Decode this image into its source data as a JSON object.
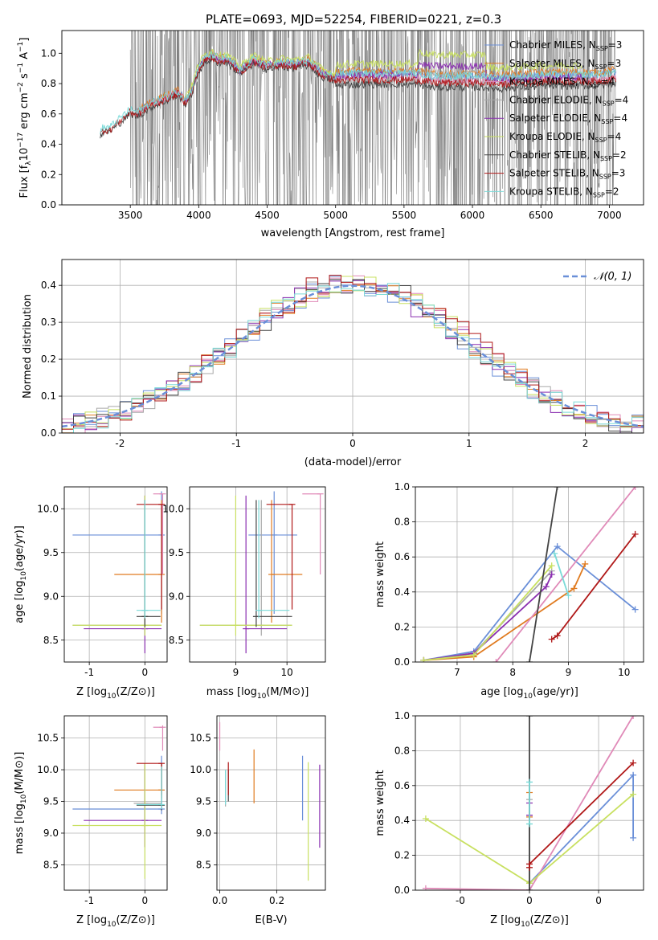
{
  "title": "PLATE=0693, MJD=52254, FIBERID=0221, z=0.3",
  "colors": {
    "chabrier_miles": "#6a8fd8",
    "salpeter_miles": "#e07b20",
    "kroupa_miles": "#e08ab8",
    "chabrier_elodie": "#a8a8a8",
    "salpeter_elodie": "#8a2fb0",
    "kroupa_elodie": "#c8e060",
    "chabrier_stelib": "#444444",
    "salpeter_stelib": "#b01818",
    "kroupa_stelib": "#7adad8",
    "data": "#808080",
    "normal": "#6a8fd8",
    "grid": "#b0b0b0"
  },
  "chart_data": [
    {
      "id": "spectrum",
      "type": "line",
      "xlabel": "wavelength [Angstrom, rest frame]",
      "ylabel": "Flux [f",
      "xlim": [
        3000,
        7250
      ],
      "ylim": [
        0,
        1.15
      ],
      "xticks": [
        3500,
        4000,
        4500,
        5000,
        5500,
        6000,
        6500,
        7000
      ],
      "yticks": [
        0.0,
        0.2,
        0.4,
        0.6,
        0.8,
        1.0
      ],
      "grid": false,
      "legend_position": "upper-right",
      "legend": [
        {
          "lib": "Chabrier MILES",
          "n": "3"
        },
        {
          "lib": "Salpeter MILES",
          "n": "3"
        },
        {
          "lib": "Kroupa MILES",
          "n": "4"
        },
        {
          "lib": "Chabrier ELODIE",
          "n": "4"
        },
        {
          "lib": "Salpeter ELODIE",
          "n": "4"
        },
        {
          "lib": "Kroupa ELODIE",
          "n": "4"
        },
        {
          "lib": "Chabrier STELIB",
          "n": "2"
        },
        {
          "lib": "Salpeter STELIB",
          "n": "3"
        },
        {
          "lib": "Kroupa STELIB",
          "n": "2"
        }
      ],
      "model_continuum": {
        "x": [
          3280,
          3300,
          3350,
          3400,
          3450,
          3500,
          3550,
          3600,
          3650,
          3700,
          3750,
          3800,
          3850,
          3900,
          3950,
          4000,
          4050,
          4100,
          4150,
          4200,
          4300,
          4400,
          4500,
          4600,
          4700,
          4800,
          4900,
          5000,
          5100,
          5200,
          5300,
          5400,
          5500,
          5600,
          5700,
          5800,
          5900,
          6000,
          6100,
          6200,
          6300,
          6400,
          6500,
          6600,
          6700,
          6800,
          6900,
          7000,
          7050
        ],
        "y": [
          0.46,
          0.5,
          0.5,
          0.54,
          0.58,
          0.62,
          0.6,
          0.63,
          0.66,
          0.68,
          0.7,
          0.72,
          0.74,
          0.68,
          0.75,
          0.9,
          0.96,
          0.98,
          0.95,
          0.96,
          0.88,
          0.95,
          0.91,
          0.93,
          0.92,
          0.94,
          0.86,
          0.83,
          0.84,
          0.84,
          0.84,
          0.84,
          0.84,
          0.84,
          0.82,
          0.82,
          0.82,
          0.82,
          0.82,
          0.81,
          0.82,
          0.82,
          0.83,
          0.83,
          0.83,
          0.83,
          0.83,
          0.84,
          0.85
        ]
      }
    },
    {
      "id": "residuals",
      "type": "line",
      "xlabel": "(data-model)/error",
      "ylabel": "Normed distribution",
      "xlim": [
        -2.5,
        2.5
      ],
      "ylim": [
        0,
        0.47
      ],
      "xticks": [
        -2,
        -1,
        0,
        1,
        2
      ],
      "yticks": [
        0.0,
        0.1,
        0.2,
        0.3,
        0.4
      ],
      "grid": true,
      "legend_position": "upper-right",
      "legend_label": "𝒩(0, 1)",
      "series": [
        {
          "key": "chabrier_miles",
          "amp": 0.4,
          "shift": 0.0
        },
        {
          "key": "salpeter_miles",
          "amp": 0.41,
          "shift": 0.05
        },
        {
          "key": "kroupa_miles",
          "amp": 0.4,
          "shift": 0.1
        },
        {
          "key": "chabrier_elodie",
          "amp": 0.405,
          "shift": 0.0
        },
        {
          "key": "salpeter_elodie",
          "amp": 0.4,
          "shift": -0.05
        },
        {
          "key": "kroupa_elodie",
          "amp": 0.41,
          "shift": 0.02
        },
        {
          "key": "chabrier_stelib",
          "amp": 0.41,
          "shift": 0.05
        },
        {
          "key": "salpeter_stelib",
          "amp": 0.42,
          "shift": 0.1
        },
        {
          "key": "kroupa_stelib",
          "amp": 0.405,
          "shift": 0.0
        }
      ]
    },
    {
      "id": "age_vs_z",
      "type": "scatter",
      "xlabel": "Z [log",
      "ylabel": "age  [log",
      "xlim": [
        -1.45,
        0.4
      ],
      "ylim": [
        8.25,
        10.25
      ],
      "xticks": [
        -1,
        0
      ],
      "yticks": [
        8.5,
        9.0,
        9.5,
        10.0
      ],
      "grid": true,
      "points": [
        {
          "key": "chabrier_miles",
          "x": 0.3,
          "y": 9.7,
          "xmin": -1.3,
          "xmax": 0.3,
          "ymin": 8.8,
          "ymax": 10.2
        },
        {
          "key": "salpeter_miles",
          "x": 0.3,
          "y": 9.25,
          "xmin": -0.55,
          "xmax": 0.3,
          "ymin": 8.7,
          "ymax": 10.1
        },
        {
          "key": "kroupa_miles",
          "x": 0.32,
          "y": 10.17,
          "xmin": 0.15,
          "xmax": 0.32,
          "ymin": 9.25,
          "ymax": 10.17
        },
        {
          "key": "chabrier_elodie",
          "x": 0.0,
          "y": 8.67,
          "xmin": -1.3,
          "xmax": 0.3,
          "ymin": 8.55,
          "ymax": 10.1
        },
        {
          "key": "salpeter_elodie",
          "x": 0.0,
          "y": 8.63,
          "xmin": -1.1,
          "xmax": 0.3,
          "ymin": 8.35,
          "ymax": 10.15
        },
        {
          "key": "kroupa_elodie",
          "x": 0.0,
          "y": 8.67,
          "xmin": -1.3,
          "xmax": 0.3,
          "ymin": 8.55,
          "ymax": 10.15
        },
        {
          "key": "chabrier_stelib",
          "x": 0.0,
          "y": 8.77,
          "xmin": -0.15,
          "xmax": 0.28,
          "ymin": 8.65,
          "ymax": 10.1
        },
        {
          "key": "salpeter_stelib",
          "x": 0.3,
          "y": 10.05,
          "xmin": -0.15,
          "xmax": 0.3,
          "ymin": 8.85,
          "ymax": 10.05
        },
        {
          "key": "kroupa_stelib",
          "x": 0.0,
          "y": 8.84,
          "xmin": -0.15,
          "xmax": 0.28,
          "ymin": 8.75,
          "ymax": 10.1
        }
      ]
    },
    {
      "id": "age_vs_mass",
      "type": "scatter",
      "xlabel": "mass [log",
      "ylabel": "",
      "xlim": [
        8.1,
        10.75
      ],
      "ylim": [
        8.25,
        10.25
      ],
      "xticks": [
        9,
        10
      ],
      "yticks": [
        8.5,
        9.0,
        9.5,
        10.0
      ],
      "grid": true,
      "points": [
        {
          "key": "chabrier_miles",
          "x": 9.75,
          "y": 9.7,
          "xmin": 9.25,
          "xmax": 10.2,
          "ymin": 8.8,
          "ymax": 10.2
        },
        {
          "key": "salpeter_miles",
          "x": 9.7,
          "y": 9.25,
          "xmin": 9.7,
          "xmax": 10.3,
          "ymin": 8.7,
          "ymax": 10.1
        },
        {
          "key": "kroupa_miles",
          "x": 10.65,
          "y": 10.17,
          "xmin": 10.3,
          "xmax": 10.65,
          "ymin": 9.25,
          "ymax": 10.17
        },
        {
          "key": "chabrier_elodie",
          "x": 9.5,
          "y": 8.67,
          "xmin": 8.3,
          "xmax": 10.1,
          "ymin": 8.55,
          "ymax": 10.1
        },
        {
          "key": "salpeter_elodie",
          "x": 9.2,
          "y": 8.63,
          "xmin": 9.2,
          "xmax": 10.0,
          "ymin": 8.35,
          "ymax": 10.15
        },
        {
          "key": "kroupa_elodie",
          "x": 9.0,
          "y": 8.67,
          "xmin": 8.3,
          "xmax": 10.1,
          "ymin": 8.55,
          "ymax": 10.15
        },
        {
          "key": "chabrier_stelib",
          "x": 9.4,
          "y": 8.77,
          "xmin": 9.4,
          "xmax": 10.1,
          "ymin": 8.65,
          "ymax": 10.1
        },
        {
          "key": "salpeter_stelib",
          "x": 10.1,
          "y": 10.05,
          "xmin": 9.6,
          "xmax": 10.1,
          "ymin": 8.85,
          "ymax": 10.05
        },
        {
          "key": "kroupa_stelib",
          "x": 9.45,
          "y": 8.84,
          "xmin": 9.45,
          "xmax": 10.05,
          "ymin": 8.75,
          "ymax": 10.1
        }
      ]
    },
    {
      "id": "massweight_vs_age",
      "type": "line",
      "xlabel": "age  [log",
      "ylabel": "mass weight",
      "xlim": [
        6.25,
        10.35
      ],
      "ylim": [
        0,
        1
      ],
      "xticks": [
        7,
        8,
        9,
        10
      ],
      "yticks": [
        0.0,
        0.2,
        0.4,
        0.6,
        0.8,
        1.0
      ],
      "grid": true,
      "series": [
        {
          "key": "chabrier_miles",
          "x": [
            6.4,
            7.3,
            8.8,
            10.2
          ],
          "y": [
            0.01,
            0.06,
            0.66,
            0.3
          ]
        },
        {
          "key": "salpeter_miles",
          "x": [
            6.4,
            7.3,
            9.1,
            9.3
          ],
          "y": [
            0.01,
            0.03,
            0.42,
            0.56
          ]
        },
        {
          "key": "kroupa_miles",
          "x": [
            7.7,
            10.2
          ],
          "y": [
            0.0,
            1.0
          ]
        },
        {
          "key": "chabrier_elodie",
          "x": [
            6.4,
            7.3,
            8.7
          ],
          "y": [
            0.01,
            0.05,
            0.52
          ]
        },
        {
          "key": "salpeter_elodie",
          "x": [
            6.4,
            7.3,
            8.6,
            8.7
          ],
          "y": [
            0.01,
            0.05,
            0.43,
            0.5
          ]
        },
        {
          "key": "kroupa_elodie",
          "x": [
            6.4,
            7.3,
            8.7
          ],
          "y": [
            0.01,
            0.04,
            0.55
          ]
        },
        {
          "key": "chabrier_stelib",
          "x": [
            8.3,
            8.8
          ],
          "y": [
            0.0,
            1.0
          ]
        },
        {
          "key": "salpeter_stelib",
          "x": [
            8.7,
            8.8,
            10.2
          ],
          "y": [
            0.13,
            0.15,
            0.73
          ]
        },
        {
          "key": "kroupa_stelib",
          "x": [
            8.75,
            9.0
          ],
          "y": [
            0.62,
            0.38
          ]
        }
      ]
    },
    {
      "id": "mass_vs_z",
      "type": "scatter",
      "xlabel": "Z [log",
      "ylabel": "mass [log",
      "xlim": [
        -1.45,
        0.4
      ],
      "ylim": [
        8.1,
        10.85
      ],
      "xticks": [
        -1,
        0
      ],
      "yticks": [
        8.5,
        9.0,
        9.5,
        10.0,
        10.5
      ],
      "grid": true,
      "points": [
        {
          "key": "chabrier_miles",
          "x": 0.3,
          "y": 9.38,
          "xmin": -1.3,
          "xmax": 0.3,
          "ymin": 9.3,
          "ymax": 10.22
        },
        {
          "key": "salpeter_miles",
          "x": 0.3,
          "y": 9.68,
          "xmin": -0.55,
          "xmax": 0.3,
          "ymin": 9.55,
          "ymax": 10.1
        },
        {
          "key": "kroupa_miles",
          "x": 0.32,
          "y": 10.67,
          "xmin": 0.15,
          "xmax": 0.32,
          "ymin": 10.3,
          "ymax": 10.7
        },
        {
          "key": "chabrier_elodie",
          "x": 0.0,
          "y": 9.47,
          "xmin": -0.2,
          "xmax": 0.3,
          "ymin": 9.1,
          "ymax": 10.1
        },
        {
          "key": "salpeter_elodie",
          "x": 0.0,
          "y": 9.2,
          "xmin": -1.1,
          "xmax": 0.3,
          "ymin": 8.78,
          "ymax": 10.1
        },
        {
          "key": "kroupa_elodie",
          "x": 0.0,
          "y": 9.12,
          "xmin": -1.3,
          "xmax": 0.3,
          "ymin": 8.28,
          "ymax": 10.1
        },
        {
          "key": "chabrier_stelib",
          "x": 0.3,
          "y": 9.44,
          "xmin": -0.15,
          "xmax": 0.3,
          "ymin": 9.36,
          "ymax": 10.1
        },
        {
          "key": "salpeter_stelib",
          "x": 0.3,
          "y": 10.1,
          "xmin": -0.15,
          "xmax": 0.3,
          "ymin": 9.6,
          "ymax": 10.1
        },
        {
          "key": "kroupa_stelib",
          "x": 0.3,
          "y": 9.45,
          "xmin": -0.15,
          "xmax": 0.3,
          "ymin": 9.38,
          "ymax": 10.05
        }
      ]
    },
    {
      "id": "mass_vs_ebv",
      "type": "scatter",
      "xlabel": "E(B-V)",
      "ylabel": "",
      "xlim": [
        -0.01,
        0.37
      ],
      "ylim": [
        8.1,
        10.85
      ],
      "xticks": [
        0.0,
        0.2
      ],
      "yticks": [
        8.5,
        9.0,
        9.5,
        10.0,
        10.5
      ],
      "grid": true,
      "points": [
        {
          "key": "chabrier_miles",
          "x": 0.29,
          "ymin": 9.2,
          "ymax": 10.22
        },
        {
          "key": "salpeter_miles",
          "x": 0.12,
          "ymin": 9.47,
          "ymax": 10.32
        },
        {
          "key": "kroupa_miles",
          "x": 0.0,
          "ymin": 10.3,
          "ymax": 10.75
        },
        {
          "key": "chabrier_elodie",
          "x": 0.02,
          "ymin": 9.42,
          "ymax": 10.0
        },
        {
          "key": "salpeter_elodie",
          "x": 0.35,
          "ymin": 8.77,
          "ymax": 10.08
        },
        {
          "key": "kroupa_elodie",
          "x": 0.31,
          "ymin": 8.25,
          "ymax": 10.12
        },
        {
          "key": "chabrier_stelib",
          "x": 0.03,
          "ymin": 9.5,
          "ymax": 10.0
        },
        {
          "key": "salpeter_stelib",
          "x": 0.03,
          "ymin": 9.6,
          "ymax": 10.12
        },
        {
          "key": "kroupa_stelib",
          "x": 0.02,
          "ymin": 9.45,
          "ymax": 10.0
        }
      ]
    },
    {
      "id": "massweight_vs_z",
      "type": "line",
      "xlabel": "Z [log",
      "ylabel": "mass weight",
      "xlim": [
        -0.33,
        0.33
      ],
      "ylim": [
        0,
        1
      ],
      "xticks": [
        -0.2,
        0.0,
        0.2
      ],
      "yticks": [
        0.0,
        0.2,
        0.4,
        0.6,
        0.8,
        1.0
      ],
      "grid": true,
      "series": [
        {
          "key": "chabrier_miles",
          "x": [
            0.0,
            0.3,
            0.3
          ],
          "y": [
            0.04,
            0.66,
            0.3
          ]
        },
        {
          "key": "salpeter_miles",
          "x": [
            0.0,
            0.0
          ],
          "y": [
            0.42,
            0.56
          ]
        },
        {
          "key": "kroupa_miles",
          "x": [
            -0.3,
            0.0,
            0.3
          ],
          "y": [
            0.01,
            0.0,
            1.0
          ]
        },
        {
          "key": "chabrier_elodie",
          "x": [
            0.0,
            0.0
          ],
          "y": [
            0.05,
            0.52
          ]
        },
        {
          "key": "salpeter_elodie",
          "x": [
            0.0,
            0.0
          ],
          "y": [
            0.43,
            0.5
          ]
        },
        {
          "key": "kroupa_elodie",
          "x": [
            -0.3,
            0.0,
            0.3
          ],
          "y": [
            0.41,
            0.04,
            0.55
          ]
        },
        {
          "key": "chabrier_stelib",
          "x": [
            0.0,
            0.0
          ],
          "y": [
            0.0,
            1.0
          ]
        },
        {
          "key": "salpeter_stelib",
          "x": [
            0.0,
            0.0,
            0.3
          ],
          "y": [
            0.13,
            0.15,
            0.73
          ]
        },
        {
          "key": "kroupa_stelib",
          "x": [
            0.0,
            0.0
          ],
          "y": [
            0.38,
            0.62
          ]
        }
      ]
    }
  ]
}
